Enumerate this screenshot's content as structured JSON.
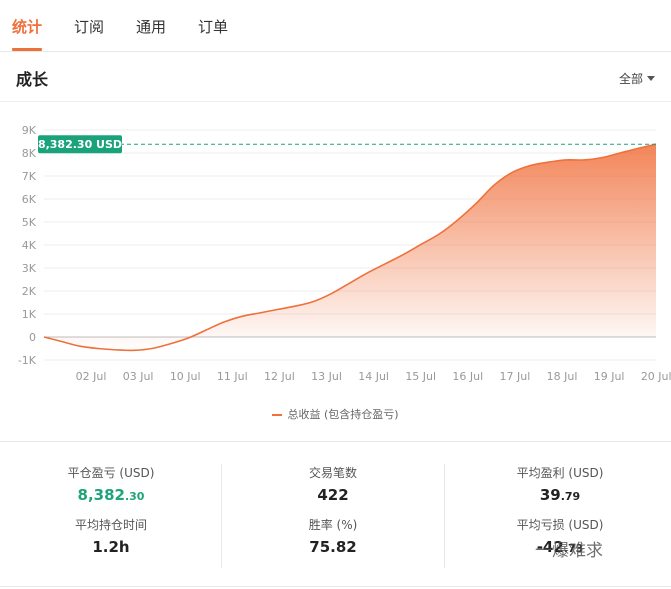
{
  "tabs": [
    {
      "label": "统计",
      "active": true
    },
    {
      "label": "订阅",
      "active": false
    },
    {
      "label": "通用",
      "active": false
    },
    {
      "label": "订单",
      "active": false
    }
  ],
  "section": {
    "title": "成长",
    "range_label": "全部"
  },
  "chart_data": {
    "type": "area",
    "y_ticks": [
      "9K",
      "8K",
      "7K",
      "6K",
      "5K",
      "4K",
      "3K",
      "2K",
      "1K",
      "0",
      "-1K"
    ],
    "ylim": [
      -1000,
      9000
    ],
    "x_ticks": [
      "02 Jul",
      "03 Jul",
      "10 Jul",
      "11 Jul",
      "12 Jul",
      "13 Jul",
      "14 Jul",
      "15 Jul",
      "16 Jul",
      "17 Jul",
      "18 Jul",
      "19 Jul",
      "20 Jul"
    ],
    "series": [
      {
        "name": "总收益 (包含持仓盈亏)",
        "color": "#f0703c",
        "values": [
          0,
          -200,
          -400,
          -500,
          -560,
          -580,
          -500,
          -300,
          -50,
          300,
          650,
          900,
          1050,
          1200,
          1350,
          1550,
          1900,
          2350,
          2800,
          3200,
          3600,
          4050,
          4500,
          5100,
          5800,
          6600,
          7150,
          7450,
          7600,
          7700,
          7700,
          7800,
          8000,
          8200,
          8382.3
        ]
      }
    ],
    "current_value_label": "8,382.30 USD",
    "current_value": 8382.3,
    "label_color": "#1aa37b"
  },
  "legend": {
    "label": "总收益 (包含持仓盈亏)"
  },
  "stats": [
    {
      "label": "平仓盈亏 (USD)",
      "int": "8,382",
      "frac": ".30",
      "green": true
    },
    {
      "label": "交易笔数",
      "int": "422",
      "frac": "",
      "green": false
    },
    {
      "label": "平均盈利 (USD)",
      "int": "39",
      "frac": ".79",
      "green": false
    },
    {
      "label": "平均持仓时间",
      "int": "1.2h",
      "frac": "",
      "green": false
    },
    {
      "label": "胜率 (%)",
      "int": "75.82",
      "frac": "",
      "green": false
    },
    {
      "label": "平均亏损 (USD)",
      "int": "-42",
      "frac": ".73",
      "green": false
    }
  ],
  "watermark": "一爆难求"
}
